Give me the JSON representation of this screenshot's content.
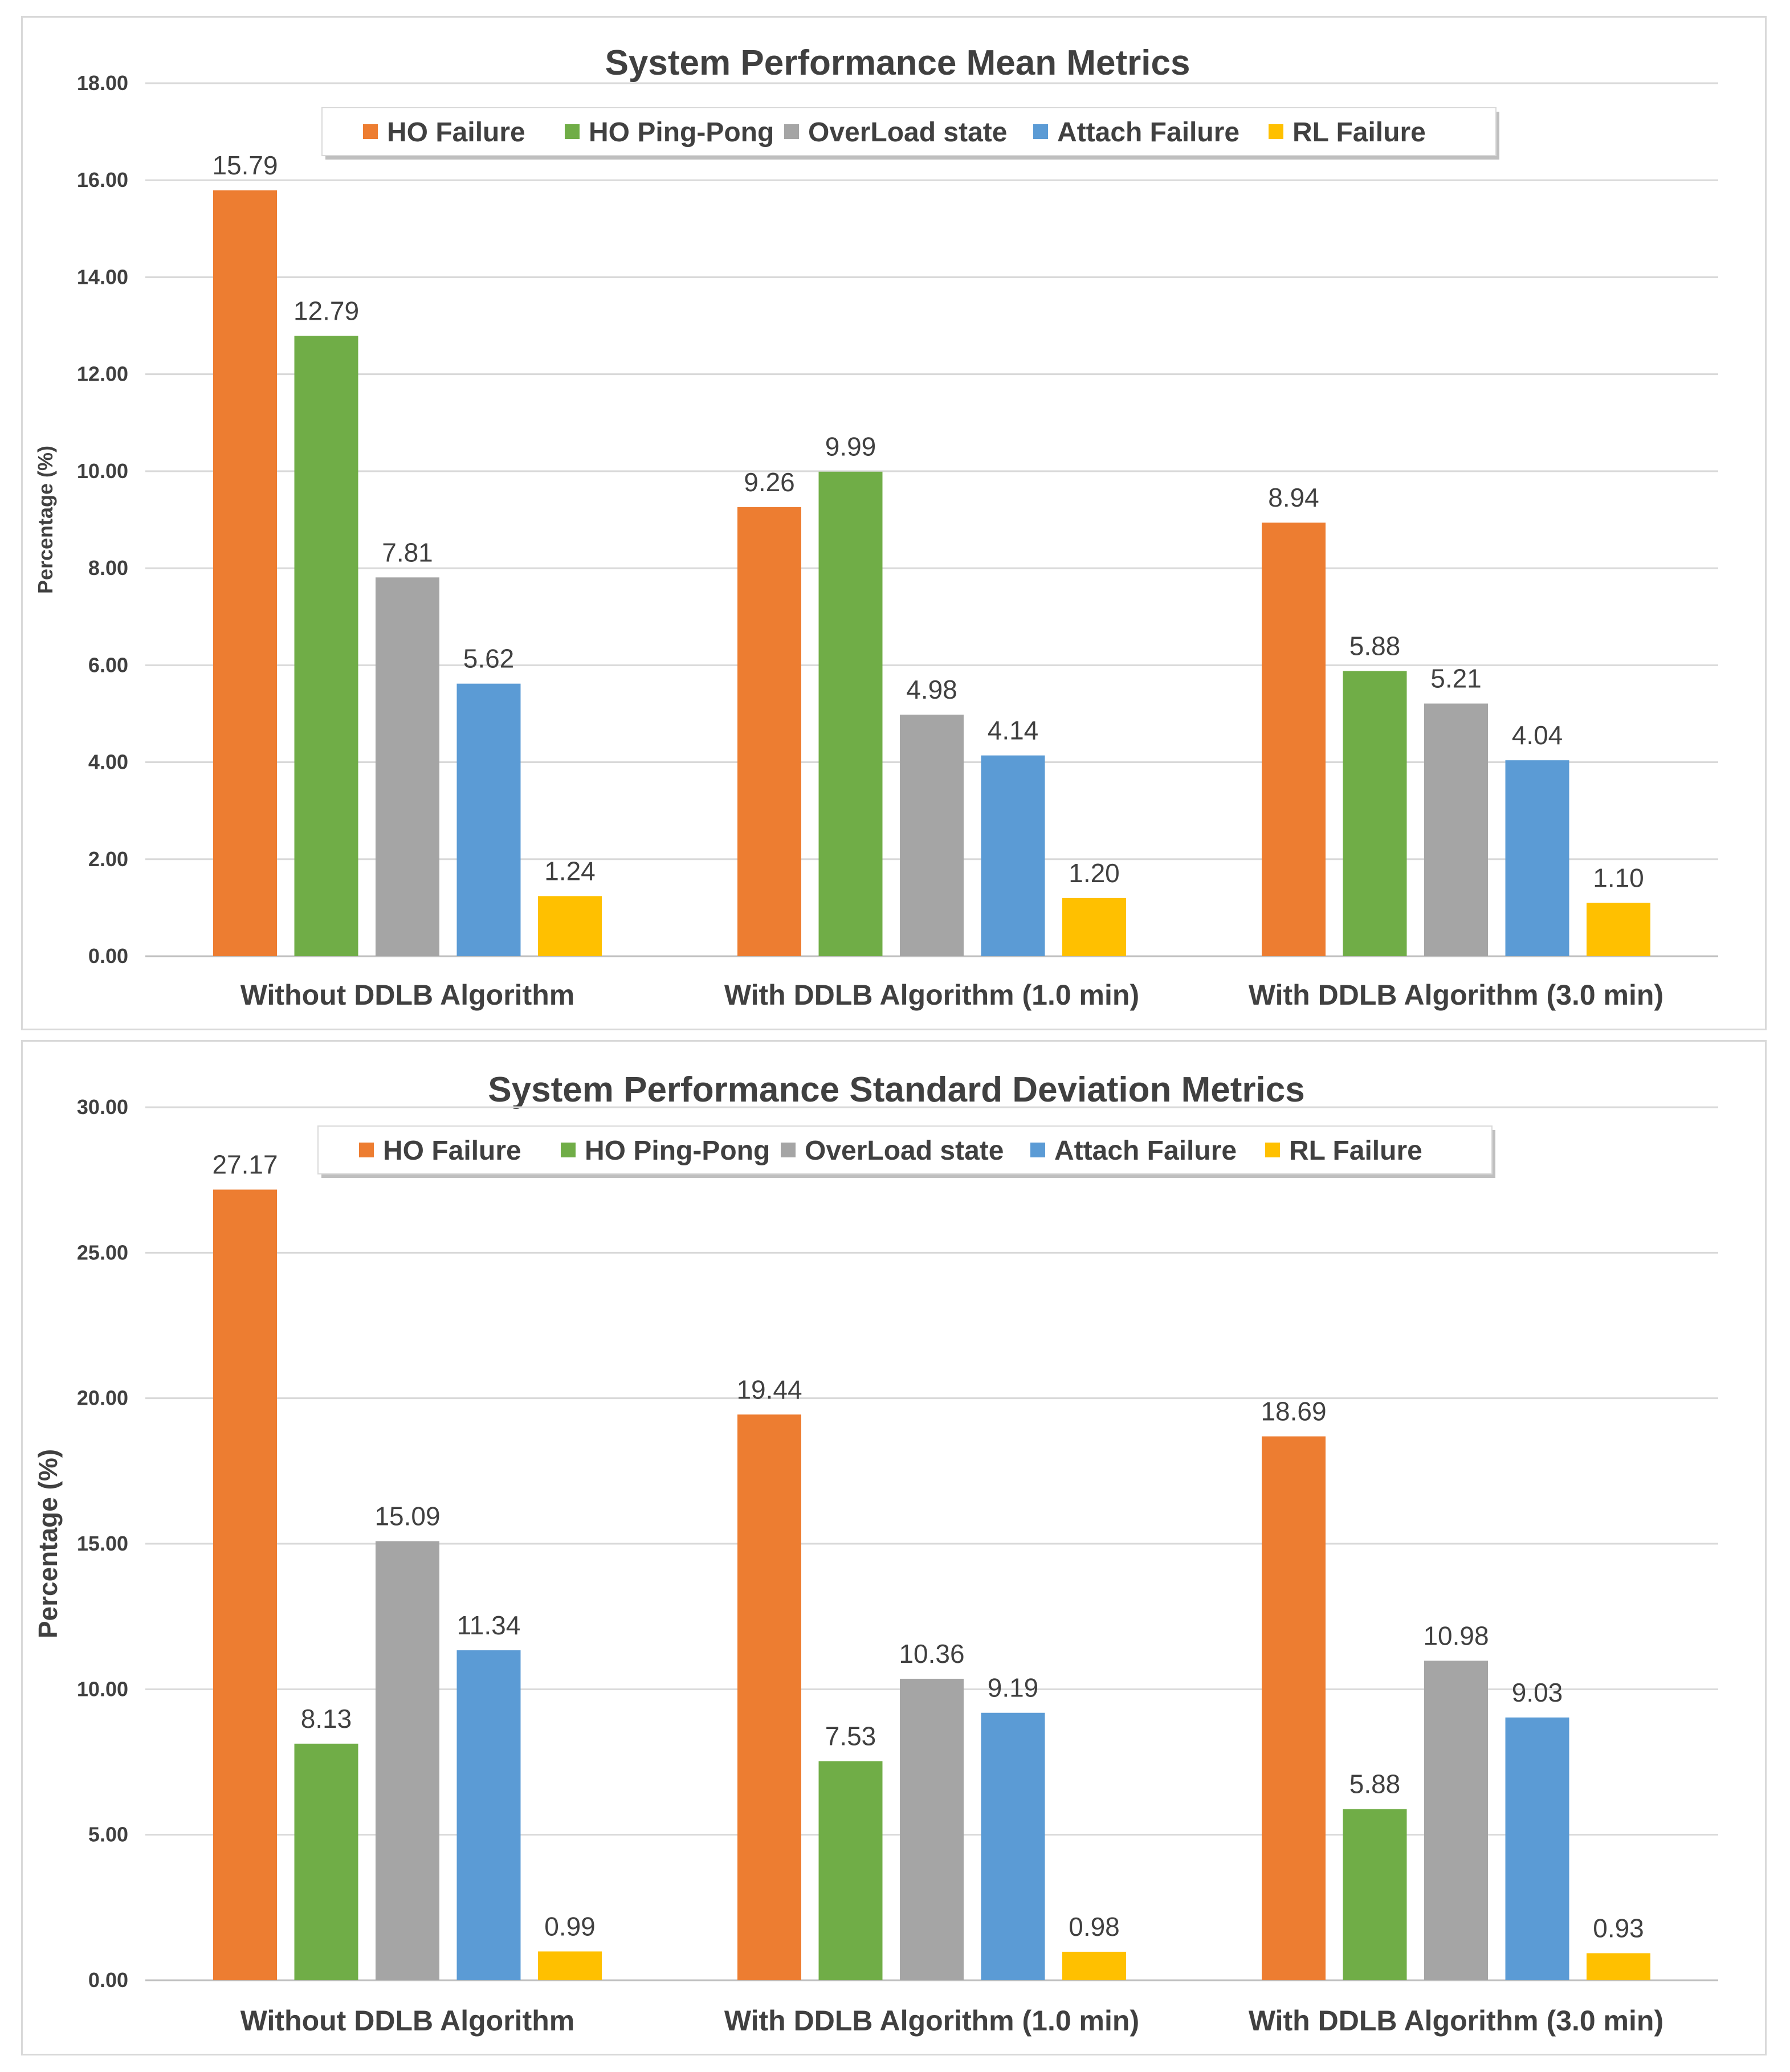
{
  "chart_data": [
    {
      "type": "bar",
      "title": "System Performance Mean Metrics",
      "xlabel": "",
      "ylabel": "Percentage (%)",
      "ylim": [
        0,
        18
      ],
      "ytick_step": 2,
      "ytick_labels": [
        "0.00",
        "2.00",
        "4.00",
        "6.00",
        "8.00",
        "10.00",
        "12.00",
        "14.00",
        "16.00",
        "18.00"
      ],
      "grid": true,
      "legend": "top-center",
      "categories": [
        "Without DDLB Algorithm",
        "With DDLB Algorithm (1.0 min)",
        "With DDLB Algorithm (3.0 min)"
      ],
      "series": [
        {
          "name": "HO Failure",
          "color": "#ED7D31",
          "values": [
            15.79,
            9.26,
            8.94
          ],
          "labels": [
            "15.79",
            "9.26",
            "8.94"
          ]
        },
        {
          "name": "HO Ping-Pong",
          "color": "#70AD47",
          "values": [
            12.79,
            9.99,
            5.88
          ],
          "labels": [
            "12.79",
            "9.99",
            "5.88"
          ]
        },
        {
          "name": "OverLoad state",
          "color": "#A5A5A5",
          "values": [
            7.81,
            4.98,
            5.21
          ],
          "labels": [
            "7.81",
            "4.98",
            "5.21"
          ]
        },
        {
          "name": "Attach Failure",
          "color": "#5B9BD5",
          "values": [
            5.62,
            4.14,
            4.04
          ],
          "labels": [
            "5.62",
            "4.14",
            "4.04"
          ]
        },
        {
          "name": "RL Failure",
          "color": "#FFC000",
          "values": [
            1.24,
            1.2,
            1.1
          ],
          "labels": [
            "1.24",
            "1.20",
            "1.10"
          ]
        }
      ]
    },
    {
      "type": "bar",
      "title": "System Performance Standard Deviation Metrics",
      "xlabel": "",
      "ylabel": "Percentage (%)",
      "ylim": [
        0,
        30
      ],
      "ytick_step": 5,
      "ytick_labels": [
        "0.00",
        "5.00",
        "10.00",
        "15.00",
        "20.00",
        "25.00",
        "30.00"
      ],
      "grid": true,
      "legend": "top-center",
      "categories": [
        "Without DDLB Algorithm",
        "With DDLB Algorithm (1.0 min)",
        "With DDLB Algorithm (3.0 min)"
      ],
      "series": [
        {
          "name": "HO Failure",
          "color": "#ED7D31",
          "values": [
            27.17,
            19.44,
            18.69
          ],
          "labels": [
            "27.17",
            "19.44",
            "18.69"
          ]
        },
        {
          "name": "HO Ping-Pong",
          "color": "#70AD47",
          "values": [
            8.13,
            7.53,
            5.88
          ],
          "labels": [
            "8.13",
            "7.53",
            "5.88"
          ]
        },
        {
          "name": "OverLoad state",
          "color": "#A5A5A5",
          "values": [
            15.09,
            10.36,
            10.98
          ],
          "labels": [
            "15.09",
            "10.36",
            "10.98"
          ]
        },
        {
          "name": "Attach Failure",
          "color": "#5B9BD5",
          "values": [
            11.34,
            9.19,
            9.03
          ],
          "labels": [
            "11.34",
            "9.19",
            "9.03"
          ]
        },
        {
          "name": "RL Failure",
          "color": "#FFC000",
          "values": [
            0.99,
            0.98,
            0.93
          ],
          "labels": [
            "0.99",
            "0.98",
            "0.93"
          ]
        }
      ]
    }
  ]
}
